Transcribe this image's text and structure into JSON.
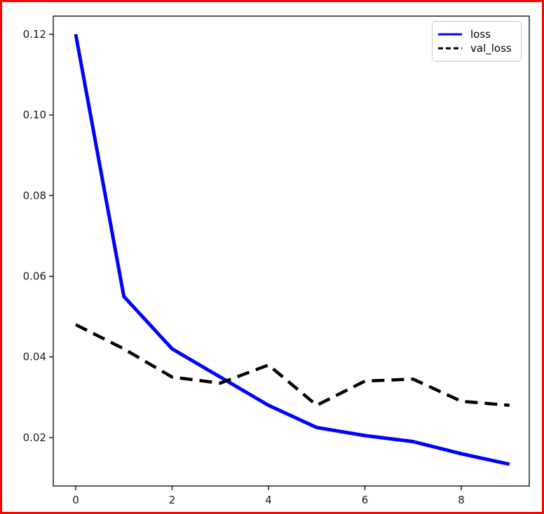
{
  "figure": {
    "border_color": "#ff0000",
    "background": "#ffffff",
    "spine_color": "#000000",
    "tick_label_color": "#1a1a1a"
  },
  "chart_data": {
    "type": "line",
    "title": "",
    "xlabel": "",
    "ylabel": "",
    "grid": false,
    "x": [
      0,
      1,
      2,
      3,
      4,
      5,
      6,
      7,
      8,
      9
    ],
    "series": [
      {
        "name": "loss",
        "color": "#0000ff",
        "style": "solid",
        "linewidth": 5,
        "values": [
          0.12,
          0.055,
          0.042,
          0.035,
          0.028,
          0.0225,
          0.0205,
          0.019,
          0.016,
          0.0134
        ]
      },
      {
        "name": "val_loss",
        "color": "#000000",
        "style": "dashed",
        "linewidth": 4.5,
        "values": [
          0.048,
          0.042,
          0.035,
          0.0335,
          0.038,
          0.028,
          0.034,
          0.0345,
          0.029,
          0.028
        ]
      }
    ],
    "xticks": {
      "values": [
        0,
        2,
        4,
        6,
        8
      ],
      "labels": [
        "0",
        "2",
        "4",
        "6",
        "8"
      ]
    },
    "yticks": {
      "values": [
        0.02,
        0.04,
        0.06,
        0.08,
        0.1,
        0.12
      ],
      "labels": [
        "0.02",
        "0.04",
        "0.06",
        "0.08",
        "0.10",
        "0.12"
      ]
    },
    "xlim": [
      -0.465,
      9.41
    ],
    "ylim": [
      0.008,
      0.1245
    ],
    "legend": {
      "position": "upper right"
    }
  }
}
